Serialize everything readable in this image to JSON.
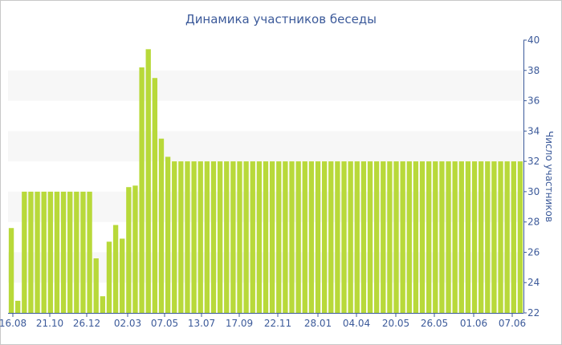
{
  "chart_data": {
    "type": "bar",
    "title": "Динамика участников беседы",
    "xlabel": "",
    "ylabel": "Число участников",
    "ylim": [
      22,
      40
    ],
    "y_ticks": [
      22,
      24,
      26,
      28,
      30,
      32,
      34,
      36,
      38,
      40
    ],
    "y_axis_side": "right",
    "grid": "alternating horizontal bands",
    "bar_color": "#b8d93a",
    "band_color": "#f7f7f7",
    "text_color": "#3c5a9a",
    "x_tick_labels": [
      "16.08",
      "21.10",
      "26.12",
      "02.03",
      "07.05",
      "13.07",
      "17.09",
      "22.11",
      "28.01",
      "04.04",
      "20.05",
      "26.05",
      "01.06",
      "07.06"
    ],
    "values": [
      27.6,
      22.8,
      30,
      30,
      30,
      30,
      30,
      30,
      30,
      30,
      30,
      30,
      30,
      25.6,
      23.1,
      26.7,
      27.8,
      26.9,
      30.3,
      30.4,
      38.2,
      39.4,
      37.5,
      33.5,
      32.3,
      32,
      32,
      32,
      32,
      32,
      32,
      32,
      32,
      32,
      32,
      32,
      32,
      32,
      32,
      32,
      32,
      32,
      32,
      32,
      32,
      32,
      32,
      32,
      32,
      32,
      32,
      32,
      32,
      32,
      32,
      32,
      32,
      32,
      32,
      32,
      32,
      32,
      32,
      32,
      32,
      32,
      32,
      32,
      32,
      32,
      32,
      32,
      32,
      32,
      32,
      32,
      32,
      32,
      32
    ]
  }
}
